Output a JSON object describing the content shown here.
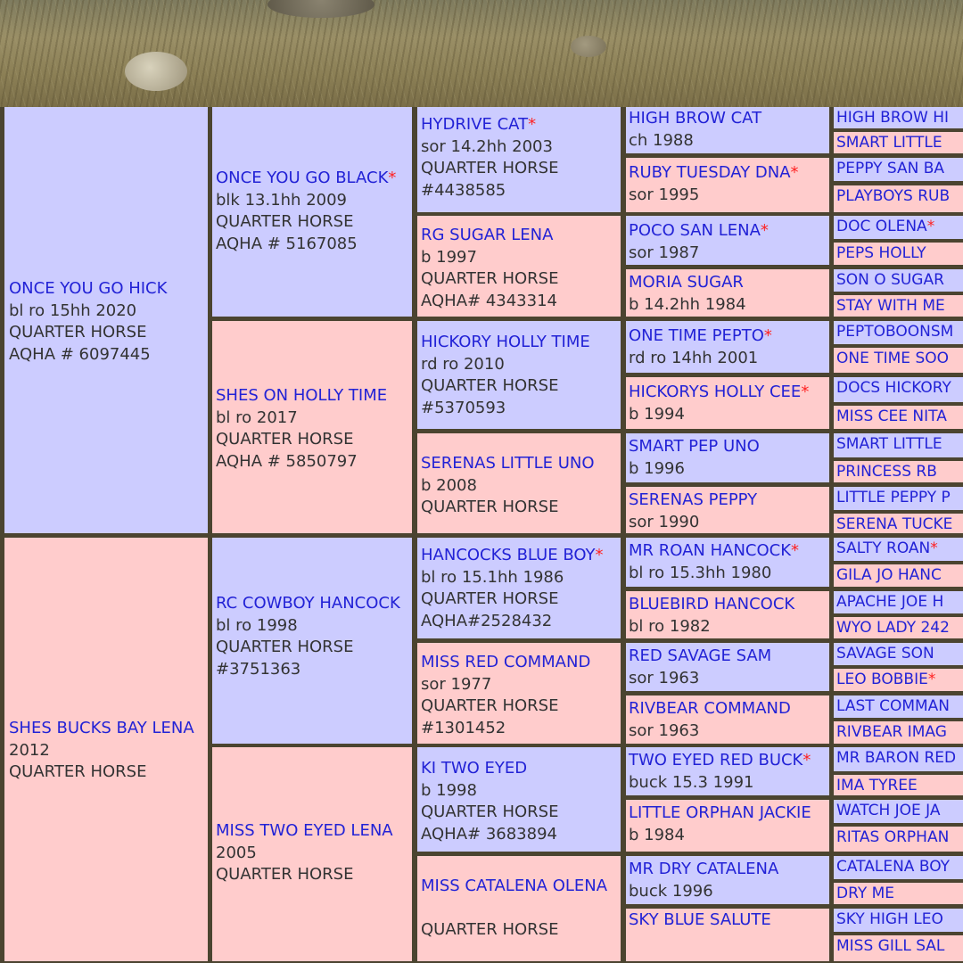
{
  "pedigree": {
    "subject": {
      "name": "ONCE YOU GO HICK",
      "lines": [
        "bl ro 15hh 2020",
        "QUARTER HORSE",
        "AQHA # 6097445"
      ]
    },
    "gen1": [
      {
        "name": "ONCE YOU GO HICK",
        "lines": [
          "bl ro 15hh 2020",
          "QUARTER HORSE",
          "AQHA # 6097445"
        ]
      },
      {
        "name": "SHES BUCKS BAY LENA",
        "lines": [
          "2012",
          "QUARTER HORSE"
        ]
      }
    ],
    "gen2": [
      {
        "name": "ONCE YOU GO BLACK",
        "star": "*",
        "lines": [
          "blk 13.1hh 2009",
          "QUARTER HORSE",
          "AQHA # 5167085"
        ]
      },
      {
        "name": "SHES ON HOLLY TIME",
        "lines": [
          "bl ro 2017",
          "QUARTER HORSE",
          "AQHA # 5850797"
        ]
      },
      {
        "name": "RC COWBOY HANCOCK",
        "lines": [
          "bl ro 1998",
          "QUARTER HORSE",
          "#3751363"
        ]
      },
      {
        "name": "MISS TWO EYED LENA",
        "lines": [
          "2005",
          "QUARTER HORSE"
        ]
      }
    ],
    "gen3": [
      {
        "name": "HYDRIVE CAT",
        "star": "*",
        "lines": [
          "sor 14.2hh 2003",
          "QUARTER HORSE",
          "#4438585"
        ]
      },
      {
        "name": "RG SUGAR LENA",
        "lines": [
          "b 1997",
          "QUARTER HORSE",
          "AQHA# 4343314"
        ]
      },
      {
        "name": "HICKORY HOLLY TIME",
        "lines": [
          "rd ro 2010",
          "QUARTER HORSE",
          "#5370593"
        ]
      },
      {
        "name": "SERENAS LITTLE UNO",
        "lines": [
          "b 2008",
          "QUARTER HORSE"
        ]
      },
      {
        "name": "HANCOCKS BLUE BOY",
        "star": "*",
        "lines": [
          "bl ro 15.1hh 1986",
          "QUARTER HORSE",
          "AQHA#2528432"
        ]
      },
      {
        "name": "MISS RED COMMAND",
        "lines": [
          "sor 1977",
          "QUARTER HORSE",
          "#1301452"
        ]
      },
      {
        "name": "KI TWO EYED",
        "lines": [
          "b 1998",
          "QUARTER HORSE",
          "AQHA# 3683894"
        ]
      },
      {
        "name": "MISS CATALENA OLENA",
        "lines": [
          "",
          "QUARTER HORSE"
        ]
      }
    ],
    "gen4": [
      {
        "name": "HIGH BROW CAT",
        "lines": [
          "ch 1988"
        ]
      },
      {
        "name": "RUBY TUESDAY DNA",
        "star": "*",
        "lines": [
          "sor 1995"
        ]
      },
      {
        "name": "POCO SAN LENA",
        "star": "*",
        "lines": [
          "sor 1987"
        ]
      },
      {
        "name": "MORIA SUGAR",
        "lines": [
          "b 14.2hh 1984"
        ]
      },
      {
        "name": "ONE TIME PEPTO",
        "star": "*",
        "lines": [
          "rd ro 14hh 2001"
        ]
      },
      {
        "name": "HICKORYS HOLLY CEE",
        "star": "*",
        "lines": [
          "b 1994"
        ]
      },
      {
        "name": "SMART PEP UNO",
        "lines": [
          "b 1996"
        ]
      },
      {
        "name": "SERENAS PEPPY",
        "lines": [
          "sor 1990"
        ]
      },
      {
        "name": "MR ROAN HANCOCK",
        "star": "*",
        "lines": [
          "bl ro 15.3hh 1980"
        ]
      },
      {
        "name": "BLUEBIRD HANCOCK",
        "lines": [
          "bl ro 1982"
        ]
      },
      {
        "name": "RED SAVAGE SAM",
        "lines": [
          "sor 1963"
        ]
      },
      {
        "name": "RIVBEAR COMMAND",
        "lines": [
          "sor 1963"
        ]
      },
      {
        "name": "TWO EYED RED BUCK",
        "star": "*",
        "lines": [
          "buck 15.3 1991"
        ]
      },
      {
        "name": "LITTLE ORPHAN JACKIE",
        "lines": [
          "b 1984"
        ]
      },
      {
        "name": "MR DRY CATALENA",
        "lines": [
          "buck 1996"
        ]
      },
      {
        "name": "SKY BLUE SALUTE",
        "lines": []
      }
    ],
    "gen5": [
      {
        "name": "HIGH BROW HI"
      },
      {
        "name": "SMART LITTLE"
      },
      {
        "name": "PEPPY SAN BA"
      },
      {
        "name": "PLAYBOYS RUB"
      },
      {
        "name": "DOC OLENA",
        "star": "*"
      },
      {
        "name": "PEPS HOLLY"
      },
      {
        "name": "SON O SUGAR"
      },
      {
        "name": "STAY WITH ME"
      },
      {
        "name": "PEPTOBOONSM"
      },
      {
        "name": "ONE TIME SOO"
      },
      {
        "name": "DOCS HICKORY"
      },
      {
        "name": "MISS CEE NITA"
      },
      {
        "name": "SMART LITTLE"
      },
      {
        "name": "PRINCESS RB"
      },
      {
        "name": "LITTLE PEPPY P"
      },
      {
        "name": "SERENA TUCKE"
      },
      {
        "name": "SALTY ROAN",
        "star": "*"
      },
      {
        "name": "GILA JO HANC"
      },
      {
        "name": "APACHE JOE H"
      },
      {
        "name": "WYO LADY 242"
      },
      {
        "name": "SAVAGE SON"
      },
      {
        "name": "LEO BOBBIE",
        "star": "*"
      },
      {
        "name": "LAST COMMAN"
      },
      {
        "name": "RIVBEAR IMAG"
      },
      {
        "name": "MR BARON RED"
      },
      {
        "name": "IMA TYREE"
      },
      {
        "name": "WATCH JOE JA"
      },
      {
        "name": "RITAS ORPHAN"
      },
      {
        "name": "CATALENA BOY"
      },
      {
        "name": "DRY ME"
      },
      {
        "name": "SKY HIGH LEO"
      },
      {
        "name": "MISS GILL SAL"
      }
    ]
  },
  "colors": {
    "sire_bg": "#ccccff",
    "dam_bg": "#ffcccc",
    "name_link": "#2222d6",
    "text": "#333333",
    "star": "#ff2222",
    "border": "#4b4430"
  }
}
